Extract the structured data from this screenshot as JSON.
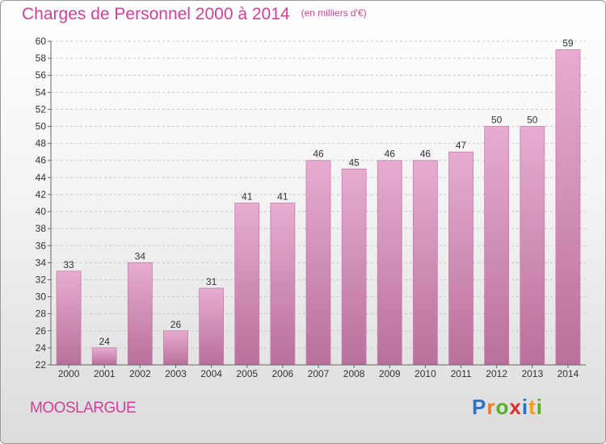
{
  "header": {
    "title": "Charges de Personnel 2000 à 2014",
    "unit": "(en milliers d'€)"
  },
  "footer": {
    "commune": "MOOSLARGUE",
    "logo": {
      "letters": [
        "P",
        "r",
        "o",
        "x",
        "i",
        "t",
        "i"
      ],
      "colors": [
        "#2a72c8",
        "#f07820",
        "#58b028",
        "#d83030",
        "#2a72c8",
        "#f0a020",
        "#58b028"
      ]
    }
  },
  "colors": {
    "title": "#d0409a",
    "bar_top": "#e8acd0",
    "bar_bottom": "#b8709c",
    "bar_edge": "#c47fa8",
    "grid": "#c8c8c8",
    "axis": "#666666"
  },
  "chart_data": {
    "type": "bar",
    "categories": [
      "2000",
      "2001",
      "2002",
      "2003",
      "2004",
      "2005",
      "2006",
      "2007",
      "2008",
      "2009",
      "2010",
      "2011",
      "2012",
      "2013",
      "2014"
    ],
    "values": [
      33,
      24,
      34,
      26,
      31,
      41,
      41,
      46,
      45,
      46,
      46,
      47,
      50,
      50,
      59
    ],
    "title": "Charges de Personnel 2000 à 2014",
    "ylabel": "",
    "xlabel": "",
    "ylim": [
      22,
      60
    ],
    "yticks": [
      22,
      24,
      26,
      28,
      30,
      32,
      34,
      36,
      38,
      40,
      42,
      44,
      46,
      48,
      50,
      52,
      54,
      56,
      58,
      60
    ],
    "grid": true,
    "data_labels": true
  }
}
